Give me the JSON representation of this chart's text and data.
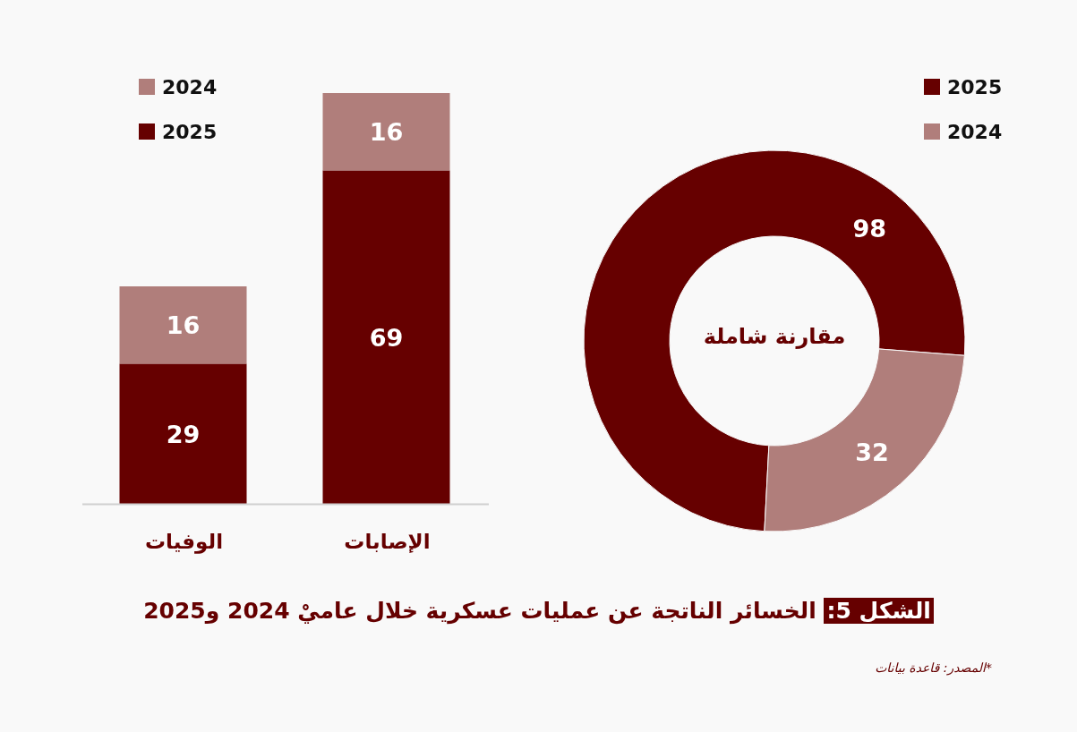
{
  "chart_data": [
    {
      "type": "bar",
      "stacked": true,
      "title": "الشكل 5: الخسائر الناتجة عن عمليات عسكرية خلال عاميْ 2024 و2025",
      "categories": [
        "الوفيات",
        "الإصابات"
      ],
      "series": [
        {
          "name": "2025",
          "color": "#660000",
          "values": [
            29,
            69
          ]
        },
        {
          "name": "2024",
          "color": "#b07e7b",
          "values": [
            16,
            16
          ]
        }
      ],
      "data_labels": true,
      "legend": "top left",
      "annotations": [
        "*المصدر: قاعدة بيانات"
      ]
    },
    {
      "type": "donut",
      "categories": [
        "2025",
        "2024"
      ],
      "values": [
        98,
        32
      ],
      "colors": [
        "#660000",
        "#b07e7b"
      ],
      "data_labels": true,
      "legend": "top right",
      "annotations": [
        "مقارنة شاملة"
      ]
    }
  ]
}
